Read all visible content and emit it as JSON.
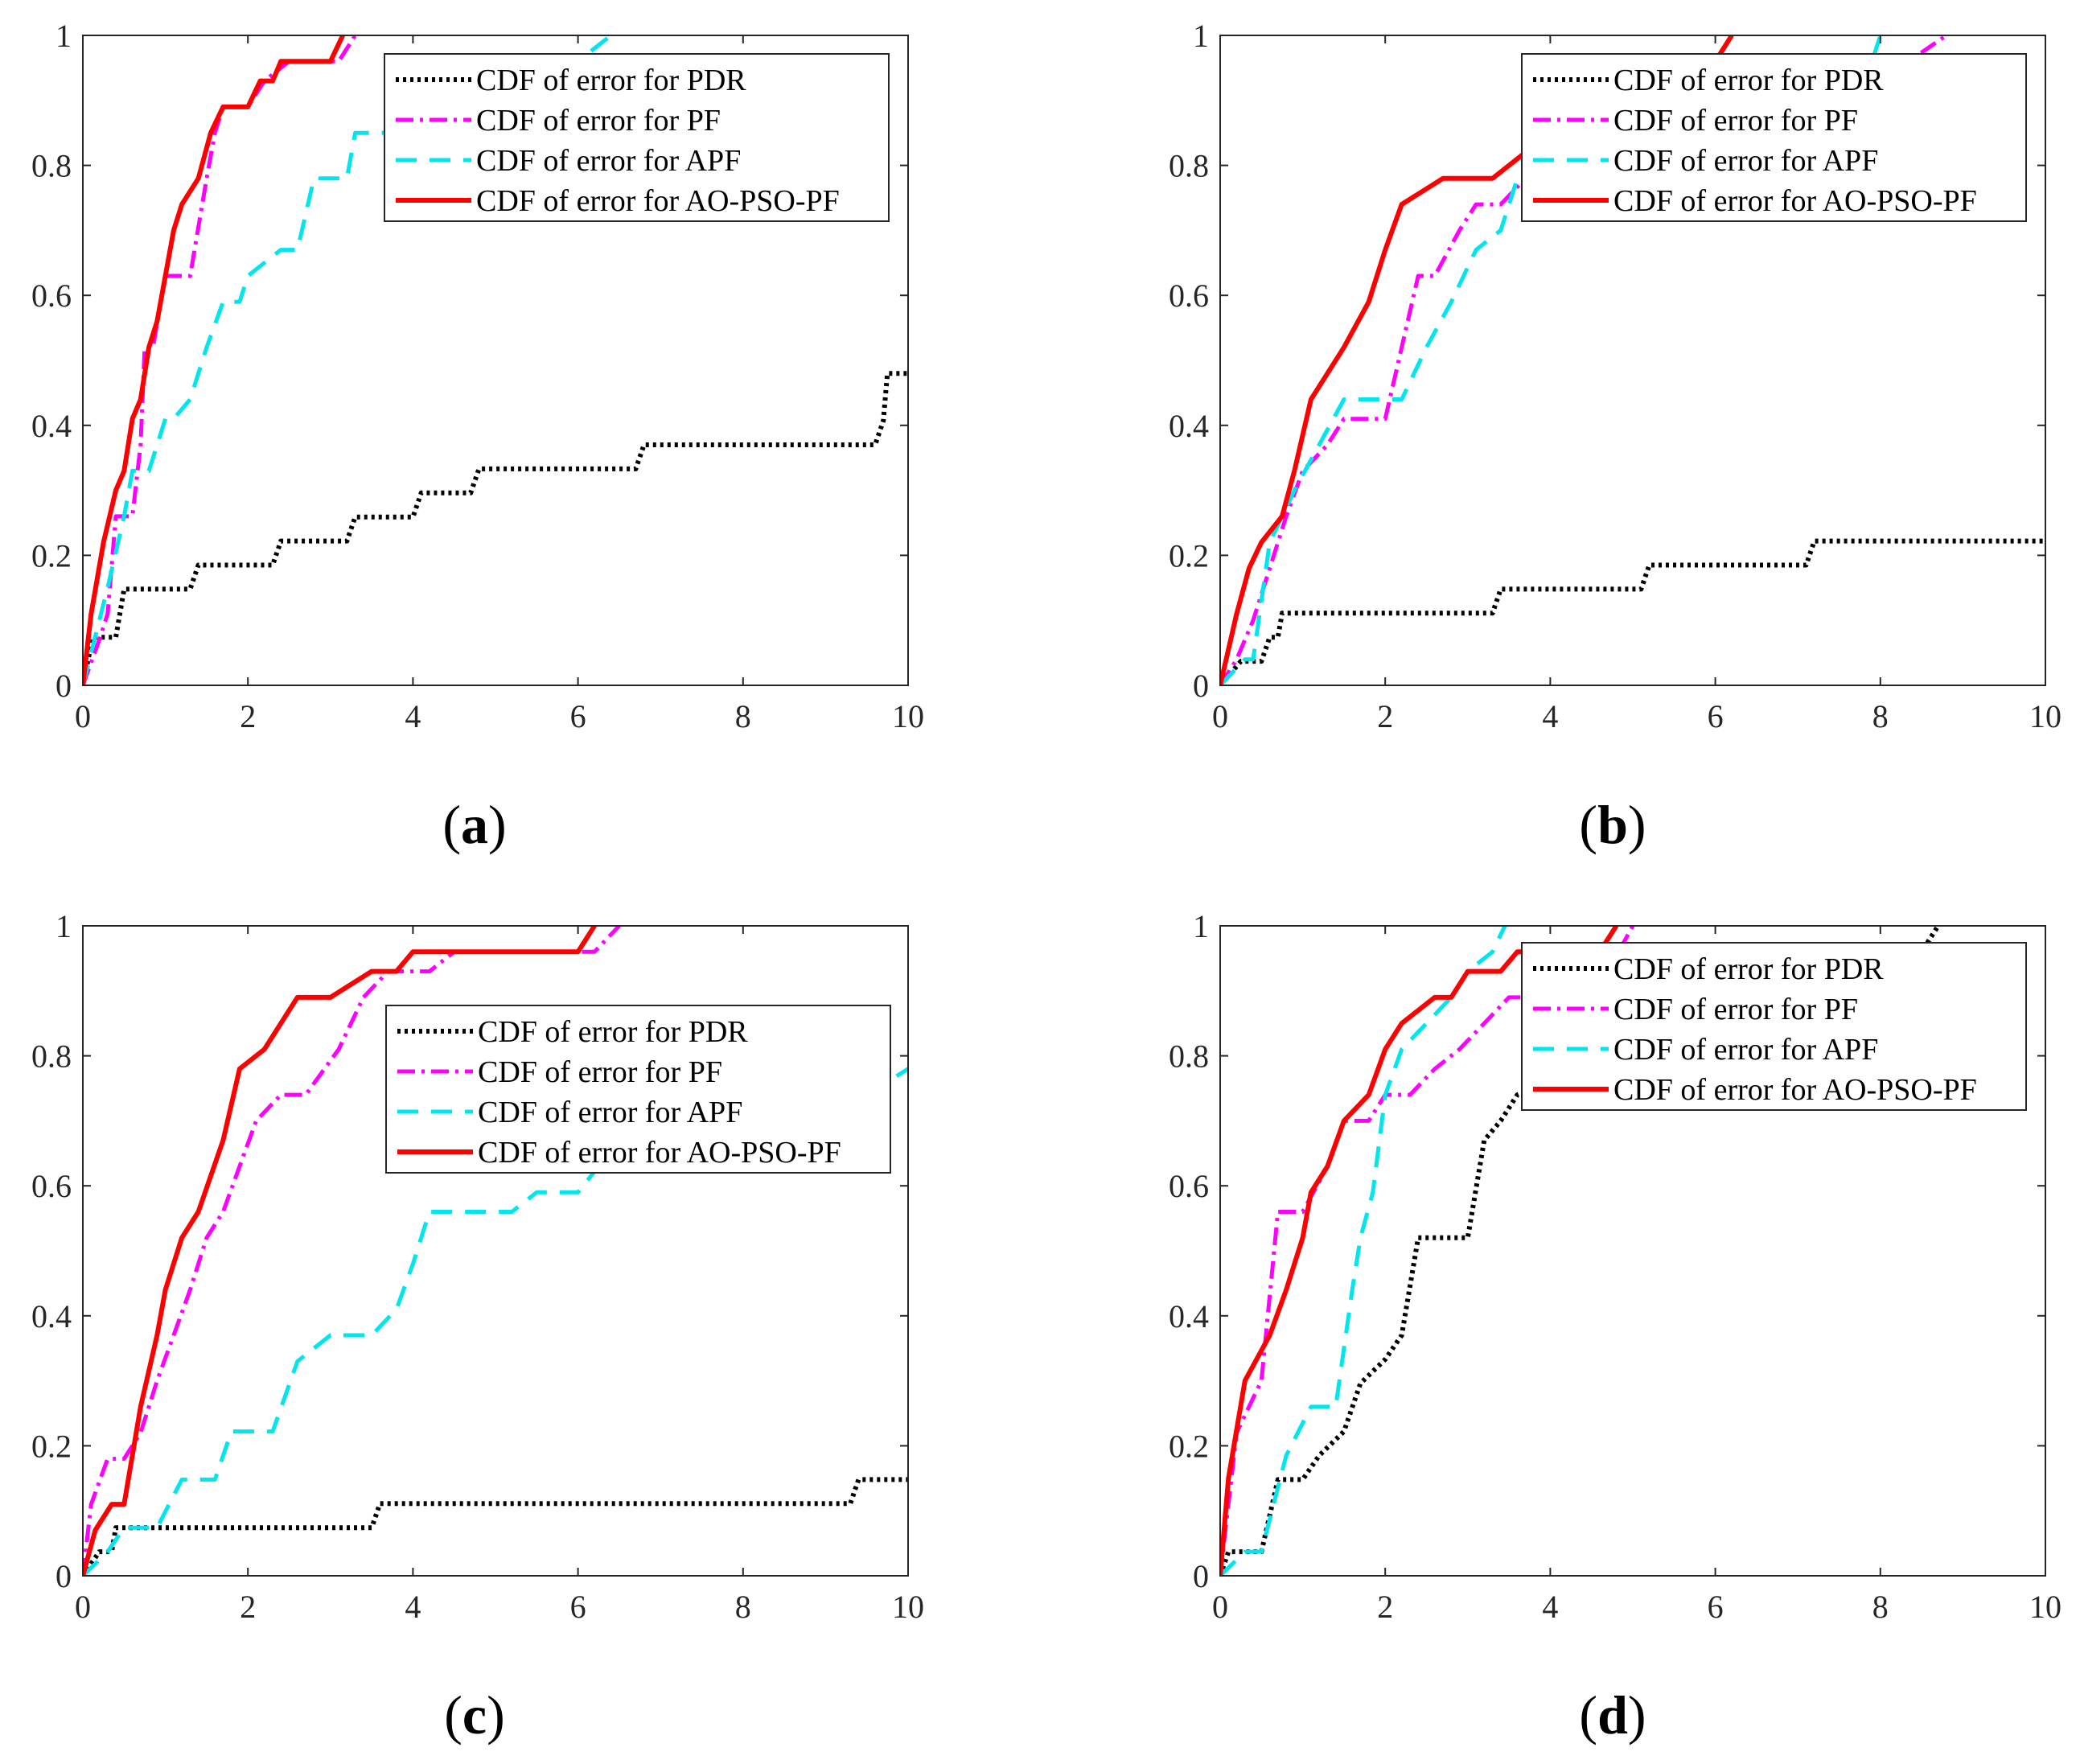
{
  "chart_data": [
    {
      "type": "line",
      "panel_label": "a",
      "xlim": [
        0,
        10
      ],
      "ylim": [
        0,
        1
      ],
      "xticks": [
        "0",
        "2",
        "4",
        "6",
        "8",
        "10"
      ],
      "yticks": [
        "0",
        "0.2",
        "0.4",
        "0.6",
        "0.8",
        "1"
      ],
      "legend_position": "top-right",
      "series": [
        {
          "name": "CDF of error for PDR",
          "color": "#000000",
          "style": "dotted",
          "x": [
            0,
            0.12,
            0.4,
            0.5,
            1.3,
            1.4,
            2.3,
            2.4,
            3.2,
            3.3,
            4.0,
            4.1,
            4.7,
            4.8,
            6.7,
            6.8,
            9.6,
            9.7,
            9.75,
            10
          ],
          "y": [
            0,
            0.074,
            0.074,
            0.148,
            0.148,
            0.185,
            0.185,
            0.222,
            0.222,
            0.259,
            0.259,
            0.296,
            0.296,
            0.333,
            0.333,
            0.37,
            0.37,
            0.407,
            0.48,
            0.48
          ]
        },
        {
          "name": "CDF of error for PF",
          "color": "#ff00ff",
          "style": "dashdot",
          "x": [
            0,
            0.2,
            0.3,
            0.4,
            0.6,
            0.7,
            0.75,
            0.85,
            1.0,
            1.3,
            1.5,
            1.6,
            1.7,
            2.0,
            2.2,
            2.5,
            3.1,
            3.3
          ],
          "y": [
            0,
            0.07,
            0.11,
            0.26,
            0.26,
            0.37,
            0.52,
            0.52,
            0.63,
            0.63,
            0.78,
            0.85,
            0.89,
            0.89,
            0.93,
            0.96,
            0.96,
            1.0
          ]
        },
        {
          "name": "CDF of error for APF",
          "color": "#00e5ee",
          "style": "dashed",
          "x": [
            0,
            0.3,
            0.5,
            0.6,
            0.8,
            1.0,
            1.1,
            1.3,
            1.5,
            1.7,
            1.9,
            2.0,
            2.4,
            2.6,
            2.8,
            3.2,
            3.3,
            4.5,
            4.7,
            5.5,
            6.0,
            6.4
          ],
          "y": [
            0,
            0.15,
            0.26,
            0.33,
            0.33,
            0.41,
            0.41,
            0.44,
            0.52,
            0.59,
            0.59,
            0.63,
            0.67,
            0.67,
            0.78,
            0.78,
            0.85,
            0.85,
            0.89,
            0.93,
            0.96,
            1.0
          ]
        },
        {
          "name": "CDF of error for AO-PSO-PF",
          "color": "#ff0000",
          "style": "solid",
          "x": [
            0,
            0.1,
            0.25,
            0.4,
            0.5,
            0.6,
            0.7,
            0.8,
            0.9,
            1.0,
            1.1,
            1.2,
            1.4,
            1.55,
            1.7,
            1.8,
            2.0,
            2.15,
            2.3,
            2.4,
            3.0,
            3.15
          ],
          "y": [
            0,
            0.11,
            0.22,
            0.3,
            0.33,
            0.41,
            0.44,
            0.52,
            0.56,
            0.63,
            0.7,
            0.74,
            0.78,
            0.85,
            0.89,
            0.89,
            0.89,
            0.93,
            0.93,
            0.96,
            0.96,
            1.0
          ]
        }
      ]
    },
    {
      "type": "line",
      "panel_label": "b",
      "xlim": [
        0,
        10
      ],
      "ylim": [
        0,
        1
      ],
      "xticks": [
        "0",
        "2",
        "4",
        "6",
        "8",
        "10"
      ],
      "yticks": [
        "0",
        "0.2",
        "0.4",
        "0.6",
        "0.8",
        "1"
      ],
      "legend_position": "top-right",
      "series": [
        {
          "name": "CDF of error for PDR",
          "color": "#000000",
          "style": "dotted",
          "x": [
            0,
            0.25,
            0.5,
            0.6,
            0.7,
            0.75,
            3.3,
            3.4,
            5.1,
            5.2,
            7.1,
            7.2,
            10
          ],
          "y": [
            0,
            0.037,
            0.037,
            0.074,
            0.074,
            0.111,
            0.111,
            0.148,
            0.148,
            0.185,
            0.185,
            0.222,
            0.222
          ]
        },
        {
          "name": "CDF of error for PF",
          "color": "#ff00ff",
          "style": "dashdot",
          "x": [
            0,
            0.2,
            0.4,
            0.6,
            0.8,
            1.0,
            1.3,
            1.5,
            2.0,
            2.2,
            2.4,
            2.6,
            2.9,
            3.1,
            3.4,
            3.7,
            7.0,
            8.0,
            8.8
          ],
          "y": [
            0,
            0.04,
            0.1,
            0.18,
            0.26,
            0.33,
            0.37,
            0.41,
            0.41,
            0.52,
            0.63,
            0.63,
            0.7,
            0.74,
            0.74,
            0.78,
            0.81,
            0.93,
            1.0
          ]
        },
        {
          "name": "CDF of error for APF",
          "color": "#00e5ee",
          "style": "dashed",
          "x": [
            0,
            0.3,
            0.4,
            0.6,
            0.9,
            1.2,
            1.5,
            2.2,
            2.5,
            2.8,
            3.1,
            3.4,
            3.6,
            4.0,
            7.9,
            8.0
          ],
          "y": [
            0,
            0.04,
            0.04,
            0.22,
            0.3,
            0.37,
            0.44,
            0.44,
            0.52,
            0.59,
            0.67,
            0.7,
            0.78,
            0.81,
            0.96,
            1.0
          ]
        },
        {
          "name": "CDF of error for AO-PSO-PF",
          "color": "#ff0000",
          "style": "solid",
          "x": [
            0,
            0.2,
            0.35,
            0.5,
            0.75,
            0.9,
            1.1,
            1.3,
            1.5,
            1.8,
            2.0,
            2.2,
            2.7,
            3.3,
            3.6,
            4.0,
            5.5,
            6.0,
            6.2
          ],
          "y": [
            0,
            0.11,
            0.18,
            0.22,
            0.26,
            0.33,
            0.44,
            0.48,
            0.52,
            0.59,
            0.67,
            0.74,
            0.78,
            0.78,
            0.81,
            0.85,
            0.89,
            0.96,
            1.0
          ]
        }
      ]
    },
    {
      "type": "line",
      "panel_label": "c",
      "xlim": [
        0,
        10
      ],
      "ylim": [
        0,
        1
      ],
      "xticks": [
        "0",
        "2",
        "4",
        "6",
        "8",
        "10"
      ],
      "yticks": [
        "0",
        "0.2",
        "0.4",
        "0.6",
        "0.8",
        "1"
      ],
      "legend_position": "right",
      "series": [
        {
          "name": "CDF of error for PDR",
          "color": "#000000",
          "style": "dotted",
          "x": [
            0,
            0.2,
            0.35,
            0.4,
            3.5,
            3.6,
            9.3,
            9.4,
            10
          ],
          "y": [
            0,
            0.037,
            0.037,
            0.074,
            0.074,
            0.111,
            0.111,
            0.148,
            0.148
          ]
        },
        {
          "name": "CDF of error for PF",
          "color": "#ff00ff",
          "style": "dashdot",
          "x": [
            0,
            0.1,
            0.3,
            0.5,
            0.7,
            0.9,
            1.1,
            1.3,
            1.5,
            1.7,
            1.9,
            2.1,
            2.4,
            2.7,
            3.1,
            3.4,
            3.7,
            4.2,
            4.5,
            6.2,
            6.5
          ],
          "y": [
            0,
            0.11,
            0.18,
            0.18,
            0.22,
            0.3,
            0.37,
            0.44,
            0.52,
            0.56,
            0.63,
            0.7,
            0.74,
            0.74,
            0.81,
            0.89,
            0.93,
            0.93,
            0.96,
            0.96,
            1.0
          ]
        },
        {
          "name": "CDF of error for APF",
          "color": "#00e5ee",
          "style": "dashed",
          "x": [
            0,
            0.3,
            0.5,
            0.9,
            1.2,
            1.6,
            1.8,
            2.3,
            2.6,
            3.0,
            3.5,
            3.8,
            4.0,
            4.2,
            5.2,
            5.5,
            6.0,
            6.5,
            9.5,
            10
          ],
          "y": [
            0,
            0.037,
            0.074,
            0.074,
            0.148,
            0.148,
            0.222,
            0.222,
            0.33,
            0.37,
            0.37,
            0.41,
            0.48,
            0.56,
            0.56,
            0.59,
            0.59,
            0.67,
            0.74,
            0.78
          ]
        },
        {
          "name": "CDF of error for AO-PSO-PF",
          "color": "#ff0000",
          "style": "solid",
          "x": [
            0,
            0.15,
            0.35,
            0.5,
            0.7,
            0.9,
            1.0,
            1.2,
            1.4,
            1.7,
            1.9,
            2.2,
            2.6,
            3.0,
            3.5,
            3.8,
            4.0,
            6.0,
            6.2
          ],
          "y": [
            0,
            0.07,
            0.11,
            0.11,
            0.26,
            0.37,
            0.44,
            0.52,
            0.56,
            0.67,
            0.78,
            0.81,
            0.89,
            0.89,
            0.93,
            0.93,
            0.96,
            0.96,
            1.0
          ]
        }
      ]
    },
    {
      "type": "line",
      "panel_label": "d",
      "xlim": [
        0,
        10
      ],
      "ylim": [
        0,
        1
      ],
      "xticks": [
        "0",
        "2",
        "4",
        "6",
        "8",
        "10"
      ],
      "yticks": [
        "0",
        "0.2",
        "0.4",
        "0.6",
        "0.8",
        "1"
      ],
      "legend_position": "top-right",
      "series": [
        {
          "name": "CDF of error for PDR",
          "color": "#000000",
          "style": "dotted",
          "x": [
            0,
            0.1,
            0.5,
            0.7,
            1.0,
            1.2,
            1.5,
            1.7,
            2.0,
            2.2,
            2.4,
            3.0,
            3.2,
            3.4,
            3.6,
            8.5,
            8.7
          ],
          "y": [
            0,
            0.037,
            0.037,
            0.148,
            0.148,
            0.185,
            0.222,
            0.296,
            0.333,
            0.37,
            0.52,
            0.52,
            0.67,
            0.7,
            0.74,
            0.96,
            1.0
          ]
        },
        {
          "name": "CDF of error for PF",
          "color": "#ff00ff",
          "style": "dashdot",
          "x": [
            0,
            0.2,
            0.5,
            0.7,
            1.0,
            1.3,
            1.5,
            1.8,
            2.0,
            2.3,
            2.6,
            2.9,
            3.2,
            3.5,
            4.0,
            4.7,
            5.0
          ],
          "y": [
            0,
            0.22,
            0.3,
            0.56,
            0.56,
            0.63,
            0.7,
            0.7,
            0.74,
            0.74,
            0.78,
            0.81,
            0.85,
            0.89,
            0.89,
            0.93,
            1.0
          ]
        },
        {
          "name": "CDF of error for APF",
          "color": "#00e5ee",
          "style": "dashed",
          "x": [
            0,
            0.3,
            0.5,
            0.8,
            1.1,
            1.4,
            1.6,
            1.7,
            1.85,
            2.0,
            2.2,
            2.5,
            2.8,
            3.0,
            3.3,
            3.45
          ],
          "y": [
            0,
            0.037,
            0.037,
            0.185,
            0.26,
            0.26,
            0.44,
            0.52,
            0.59,
            0.74,
            0.81,
            0.85,
            0.89,
            0.93,
            0.96,
            1.0
          ]
        },
        {
          "name": "CDF of error for AO-PSO-PF",
          "color": "#ff0000",
          "style": "solid",
          "x": [
            0,
            0.1,
            0.3,
            0.6,
            0.8,
            1.0,
            1.1,
            1.3,
            1.5,
            1.8,
            2.0,
            2.2,
            2.6,
            2.8,
            3.0,
            3.4,
            3.6,
            4.6,
            4.8
          ],
          "y": [
            0,
            0.15,
            0.3,
            0.37,
            0.44,
            0.52,
            0.59,
            0.63,
            0.7,
            0.74,
            0.81,
            0.85,
            0.89,
            0.89,
            0.93,
            0.93,
            0.96,
            0.96,
            1.0
          ]
        }
      ]
    }
  ]
}
